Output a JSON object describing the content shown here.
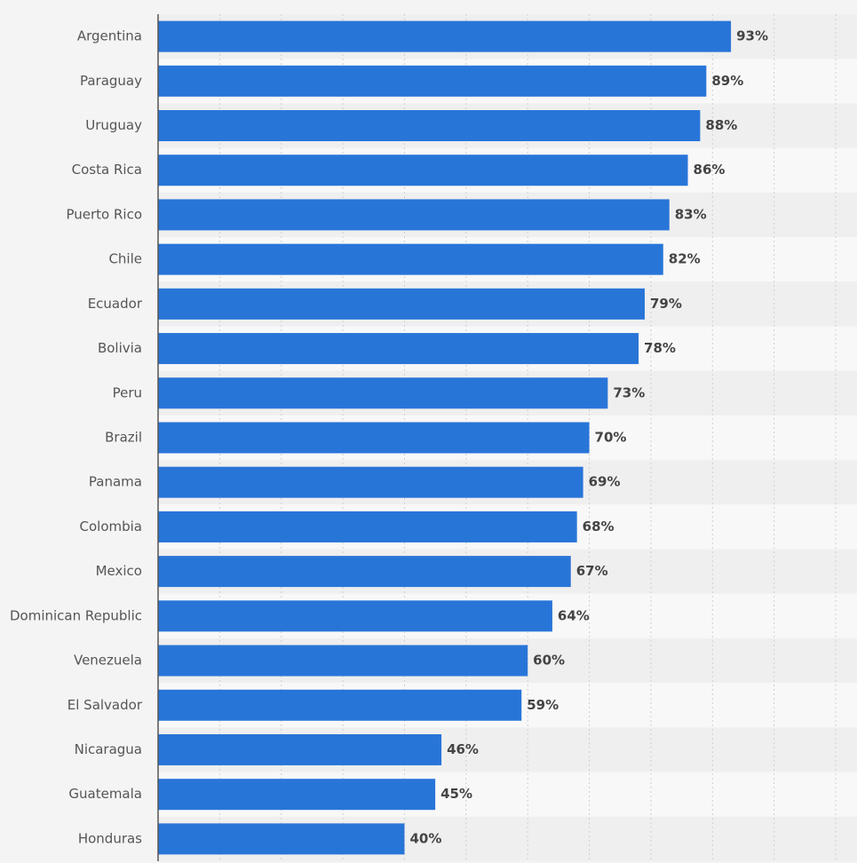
{
  "chart_data": {
    "type": "bar",
    "orientation": "horizontal",
    "title": "",
    "xlabel": "",
    "ylabel": "",
    "categories": [
      "Argentina",
      "Paraguay",
      "Uruguay",
      "Costa Rica",
      "Puerto Rico",
      "Chile",
      "Ecuador",
      "Bolivia",
      "Peru",
      "Brazil",
      "Panama",
      "Colombia",
      "Mexico",
      "Dominican Republic",
      "Venezuela",
      "El Salvador",
      "Nicaragua",
      "Guatemala",
      "Honduras"
    ],
    "values": [
      93,
      89,
      88,
      86,
      83,
      82,
      79,
      78,
      73,
      70,
      69,
      68,
      67,
      64,
      60,
      59,
      46,
      45,
      40
    ],
    "value_labels": [
      "93%",
      "89%",
      "88%",
      "86%",
      "83%",
      "82%",
      "79%",
      "78%",
      "73%",
      "70%",
      "69%",
      "68%",
      "67%",
      "64%",
      "60%",
      "59%",
      "46%",
      "45%",
      "40%"
    ],
    "xlim": [
      0,
      110
    ],
    "grid": true,
    "bar_color": "#2875d8",
    "band_colors": [
      "#efefef",
      "#f8f8f8"
    ]
  }
}
